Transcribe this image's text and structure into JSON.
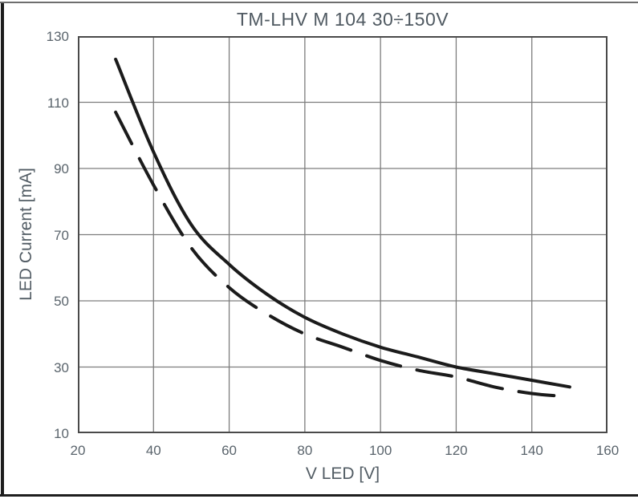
{
  "page": {
    "title": "TM-LHV M 104 30÷150V"
  },
  "chart_data": {
    "type": "line",
    "title": "TM-LHV M 104 30÷150V",
    "xlabel": "V LED [V]",
    "ylabel": "LED Current [mA]",
    "xlim": [
      20,
      160
    ],
    "ylim": [
      10,
      130
    ],
    "xticks": [
      20,
      40,
      60,
      80,
      100,
      120,
      140,
      160
    ],
    "yticks": [
      10,
      30,
      50,
      70,
      90,
      110,
      130
    ],
    "grid": true,
    "legend_position": "none",
    "x": [
      30,
      40,
      50,
      60,
      70,
      80,
      90,
      100,
      110,
      120,
      130,
      140,
      150
    ],
    "series": [
      {
        "name": "upper-current-curve",
        "line_style": "solid",
        "color": "#1b1b1b",
        "values": [
          123,
          95,
          73,
          61,
          52,
          45,
          40,
          36,
          33,
          30,
          28,
          26,
          24
        ]
      },
      {
        "name": "lower-current-curve",
        "line_style": "dashed",
        "color": "#1b1b1b",
        "values": [
          107,
          85,
          66,
          54,
          46,
          40,
          36,
          32,
          29,
          27,
          24,
          22,
          21
        ]
      }
    ]
  },
  "colors": {
    "text": "#545f68",
    "grid": "#7d7d7d",
    "plot_border": "#4a4a4a",
    "curve": "#1b1b1b",
    "frame": "#1d1d1d"
  }
}
